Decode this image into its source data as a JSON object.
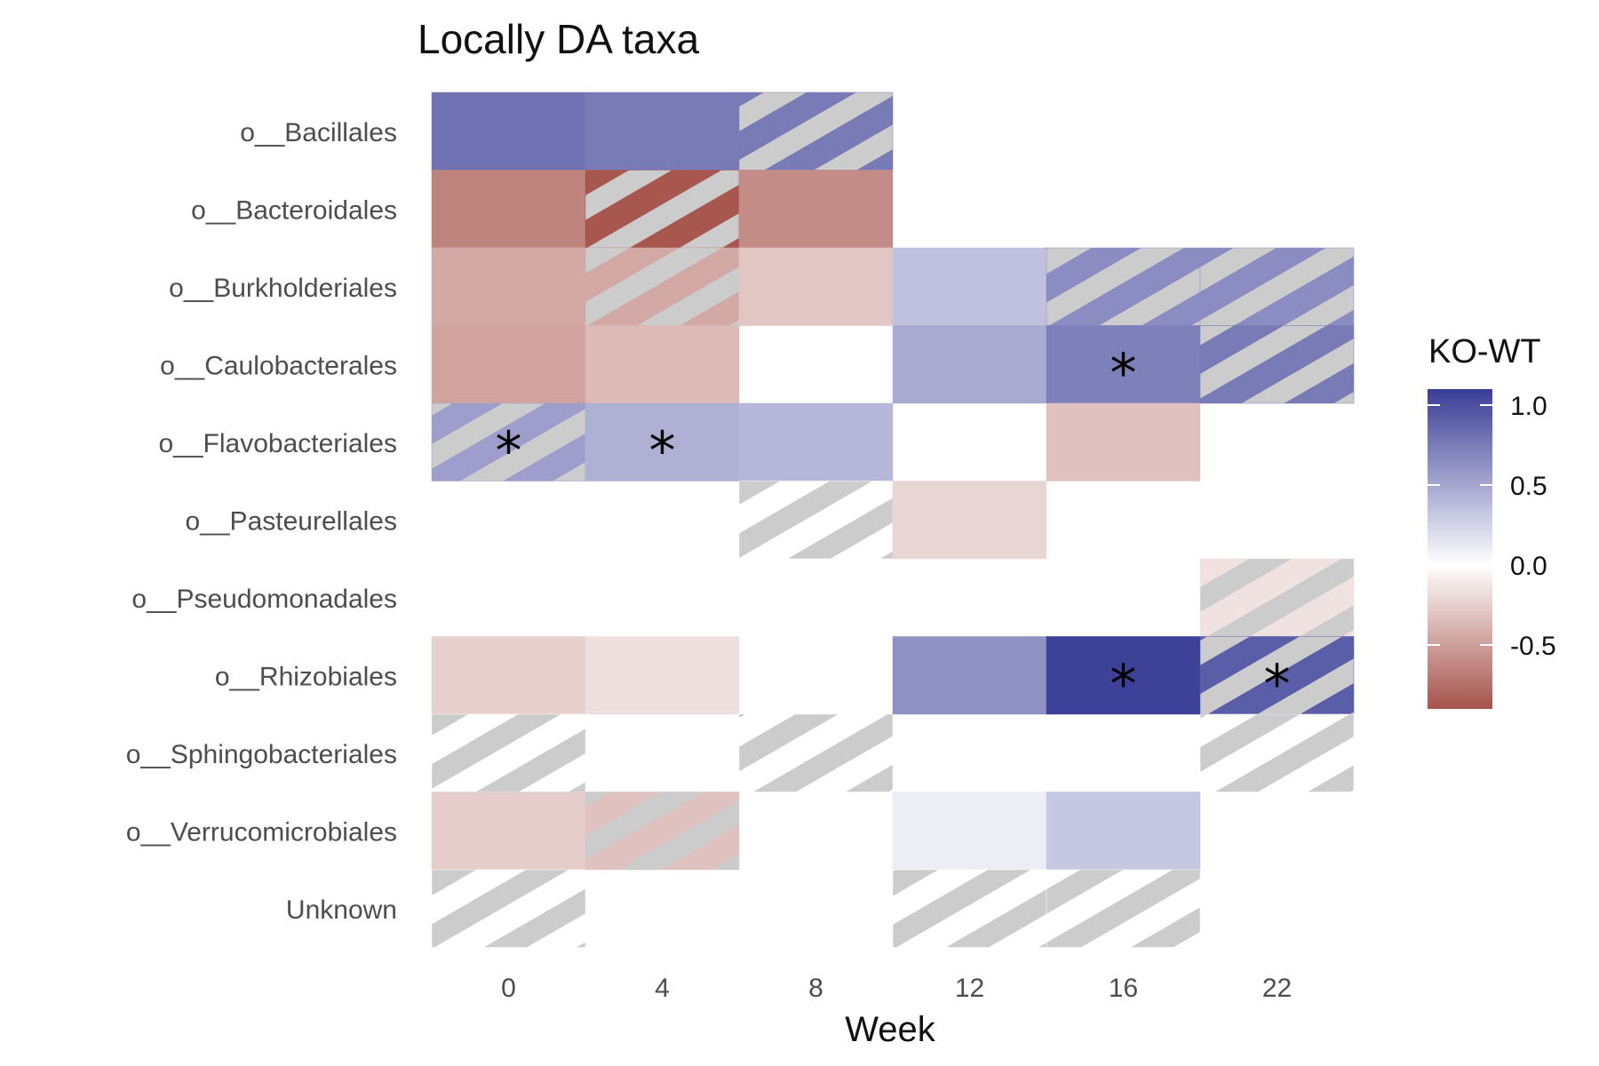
{
  "chart_data": {
    "type": "heatmap",
    "title": "Locally DA taxa",
    "xlabel": "Week",
    "ylabel": "",
    "x_categories": [
      "0",
      "4",
      "8",
      "12",
      "16",
      "22"
    ],
    "y_categories": [
      "o__Bacillales",
      "o__Bacteroidales",
      "o__Burkholderiales",
      "o__Caulobacterales",
      "o__Flavobacteriales",
      "o__Pasteurellales",
      "o__Pseudomonadales",
      "o__Rhizobiales",
      "o__Sphingobacteriales",
      "o__Verrucomicrobiales",
      "Unknown"
    ],
    "legend": {
      "title": "KO-WT",
      "ticks": [
        "1.0",
        "0.5",
        "0.0",
        "-0.5"
      ],
      "tick_values": [
        1.0,
        0.5,
        0.0,
        -0.5
      ],
      "min": -0.9,
      "max": 1.1,
      "placement": "right",
      "colors": {
        "low": "#a6534b",
        "mid": "#ffffff",
        "high": "#3a3d96"
      }
    },
    "hatch_color": "#cccccc",
    "cells": [
      {
        "taxon": "o__Bacillales",
        "week": "0",
        "value": 0.8,
        "hatched": false,
        "significant": false
      },
      {
        "taxon": "o__Bacillales",
        "week": "4",
        "value": 0.75,
        "hatched": false,
        "significant": false
      },
      {
        "taxon": "o__Bacillales",
        "week": "8",
        "value": 0.75,
        "hatched": true,
        "significant": false
      },
      {
        "taxon": "o__Bacteroidales",
        "week": "0",
        "value": -0.65,
        "hatched": false,
        "significant": false
      },
      {
        "taxon": "o__Bacteroidales",
        "week": "4",
        "value": -0.88,
        "hatched": true,
        "significant": false
      },
      {
        "taxon": "o__Bacteroidales",
        "week": "8",
        "value": -0.6,
        "hatched": false,
        "significant": false
      },
      {
        "taxon": "o__Burkholderiales",
        "week": "0",
        "value": -0.45,
        "hatched": false,
        "significant": false
      },
      {
        "taxon": "o__Burkholderiales",
        "week": "4",
        "value": -0.45,
        "hatched": true,
        "significant": false
      },
      {
        "taxon": "o__Burkholderiales",
        "week": "8",
        "value": -0.3,
        "hatched": false,
        "significant": false
      },
      {
        "taxon": "o__Burkholderiales",
        "week": "12",
        "value": 0.35,
        "hatched": false,
        "significant": false
      },
      {
        "taxon": "o__Burkholderiales",
        "week": "16",
        "value": 0.65,
        "hatched": true,
        "significant": false
      },
      {
        "taxon": "o__Burkholderiales",
        "week": "22",
        "value": 0.65,
        "hatched": true,
        "significant": false
      },
      {
        "taxon": "o__Caulobacterales",
        "week": "0",
        "value": -0.48,
        "hatched": false,
        "significant": false
      },
      {
        "taxon": "o__Caulobacterales",
        "week": "4",
        "value": -0.36,
        "hatched": false,
        "significant": false
      },
      {
        "taxon": "o__Caulobacterales",
        "week": "12",
        "value": 0.48,
        "hatched": false,
        "significant": false
      },
      {
        "taxon": "o__Caulobacterales",
        "week": "16",
        "value": 0.72,
        "hatched": false,
        "significant": true
      },
      {
        "taxon": "o__Caulobacterales",
        "week": "22",
        "value": 0.75,
        "hatched": true,
        "significant": false
      },
      {
        "taxon": "o__Flavobacteriales",
        "week": "0",
        "value": 0.55,
        "hatched": true,
        "significant": true
      },
      {
        "taxon": "o__Flavobacteriales",
        "week": "4",
        "value": 0.45,
        "hatched": false,
        "significant": true
      },
      {
        "taxon": "o__Flavobacteriales",
        "week": "8",
        "value": 0.4,
        "hatched": false,
        "significant": false
      },
      {
        "taxon": "o__Flavobacteriales",
        "week": "16",
        "value": -0.32,
        "hatched": false,
        "significant": false
      },
      {
        "taxon": "o__Pasteurellales",
        "week": "8",
        "value": 0.0,
        "hatched": true,
        "significant": false
      },
      {
        "taxon": "o__Pasteurellales",
        "week": "12",
        "value": -0.22,
        "hatched": false,
        "significant": false
      },
      {
        "taxon": "o__Pseudomonadales",
        "week": "22",
        "value": -0.15,
        "hatched": true,
        "significant": false
      },
      {
        "taxon": "o__Rhizobiales",
        "week": "0",
        "value": -0.24,
        "hatched": false,
        "significant": false
      },
      {
        "taxon": "o__Rhizobiales",
        "week": "4",
        "value": -0.16,
        "hatched": false,
        "significant": false
      },
      {
        "taxon": "o__Rhizobiales",
        "week": "12",
        "value": 0.62,
        "hatched": false,
        "significant": false
      },
      {
        "taxon": "o__Rhizobiales",
        "week": "16",
        "value": 1.08,
        "hatched": false,
        "significant": true
      },
      {
        "taxon": "o__Rhizobiales",
        "week": "22",
        "value": 0.92,
        "hatched": true,
        "significant": true
      },
      {
        "taxon": "o__Sphingobacteriales",
        "week": "0",
        "value": 0.0,
        "hatched": true,
        "significant": false
      },
      {
        "taxon": "o__Sphingobacteriales",
        "week": "8",
        "value": 0.0,
        "hatched": true,
        "significant": false
      },
      {
        "taxon": "o__Sphingobacteriales",
        "week": "22",
        "value": 0.0,
        "hatched": true,
        "significant": false
      },
      {
        "taxon": "o__Verrucomicrobiales",
        "week": "0",
        "value": -0.26,
        "hatched": false,
        "significant": false
      },
      {
        "taxon": "o__Verrucomicrobiales",
        "week": "4",
        "value": -0.32,
        "hatched": true,
        "significant": false
      },
      {
        "taxon": "o__Verrucomicrobiales",
        "week": "12",
        "value": 0.1,
        "hatched": false,
        "significant": false
      },
      {
        "taxon": "o__Verrucomicrobiales",
        "week": "16",
        "value": 0.32,
        "hatched": false,
        "significant": false
      },
      {
        "taxon": "Unknown",
        "week": "0",
        "value": 0.0,
        "hatched": true,
        "significant": false
      },
      {
        "taxon": "Unknown",
        "week": "12",
        "value": 0.0,
        "hatched": true,
        "significant": false
      },
      {
        "taxon": "Unknown",
        "week": "16",
        "value": 0.0,
        "hatched": true,
        "significant": false
      }
    ]
  }
}
